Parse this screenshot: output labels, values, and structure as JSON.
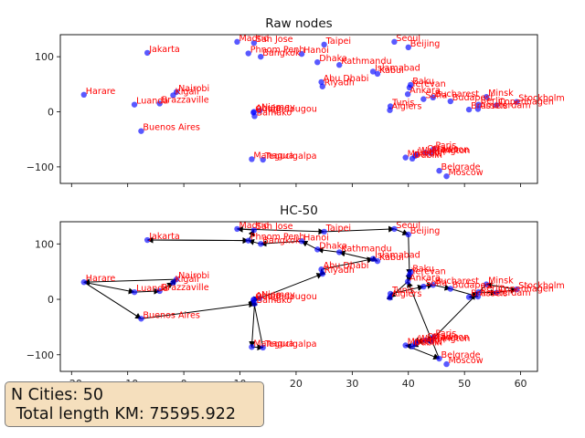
{
  "summary": {
    "cities_line": "N Cities: 50",
    "length_line": " Total length KM: 75595.922"
  },
  "chart_data": [
    {
      "type": "scatter",
      "title": "Raw nodes",
      "xlim": [
        -22,
        63
      ],
      "ylim": [
        -130,
        140
      ],
      "xticks": [
        -20,
        -10,
        0,
        10,
        20,
        30,
        40,
        50,
        60
      ],
      "yticks": [
        -100,
        0,
        100
      ],
      "show_xtick_labels": false,
      "point_color": "#0000ff",
      "label_color": "#ff0000"
    },
    {
      "type": "line",
      "title": "HC-50",
      "xlim": [
        -22,
        63
      ],
      "ylim": [
        -130,
        140
      ],
      "xticks": [
        -20,
        -10,
        0,
        10,
        20,
        30,
        40,
        50,
        60
      ],
      "yticks": [
        -100,
        0,
        100
      ],
      "show_xtick_labels": true,
      "point_color": "#0000ff",
      "label_color": "#ff0000",
      "route_color": "#000000"
    }
  ],
  "cities": [
    {
      "name": "Madrid",
      "x": 9.5,
      "y": 127
    },
    {
      "name": "San Jose",
      "x": 12.5,
      "y": 125
    },
    {
      "name": "Taipei",
      "x": 25,
      "y": 122
    },
    {
      "name": "Seoul",
      "x": 37.5,
      "y": 127
    },
    {
      "name": "Beijing",
      "x": 40,
      "y": 117
    },
    {
      "name": "Jakarta",
      "x": -6.5,
      "y": 107
    },
    {
      "name": "Phnom Penh",
      "x": 11.5,
      "y": 106
    },
    {
      "name": "Bangkok",
      "x": 13.7,
      "y": 100
    },
    {
      "name": "Hanoi",
      "x": 21,
      "y": 105
    },
    {
      "name": "Dhaka",
      "x": 23.8,
      "y": 90
    },
    {
      "name": "Kathmandu",
      "x": 27.7,
      "y": 85
    },
    {
      "name": "Islamabad",
      "x": 33.7,
      "y": 73
    },
    {
      "name": "Kabul",
      "x": 34.5,
      "y": 69
    },
    {
      "name": "Abu Dhabi",
      "x": 24.5,
      "y": 54
    },
    {
      "name": "Riyadh",
      "x": 24.7,
      "y": 46
    },
    {
      "name": "Baku",
      "x": 40.4,
      "y": 49
    },
    {
      "name": "Yerevan",
      "x": 40.2,
      "y": 44
    },
    {
      "name": "Harare",
      "x": -17.8,
      "y": 31
    },
    {
      "name": "Nairobi",
      "x": -1.3,
      "y": 36
    },
    {
      "name": "Kigali",
      "x": -1.9,
      "y": 30
    },
    {
      "name": "Luanda",
      "x": -8.8,
      "y": 13
    },
    {
      "name": "Brazzaville",
      "x": -4.3,
      "y": 15
    },
    {
      "name": "Ankara",
      "x": 39.9,
      "y": 32
    },
    {
      "name": "Sofia",
      "x": 42.7,
      "y": 23
    },
    {
      "name": "Bucharest",
      "x": 44.4,
      "y": 26
    },
    {
      "name": "Budapest",
      "x": 47.5,
      "y": 19
    },
    {
      "name": "Minsk",
      "x": 53.9,
      "y": 27
    },
    {
      "name": "Stockholm",
      "x": 59.3,
      "y": 18
    },
    {
      "name": "Copenhagen",
      "x": 55.7,
      "y": 12
    },
    {
      "name": "Berlin",
      "x": 52.5,
      "y": 13
    },
    {
      "name": "Amsterdam",
      "x": 52.4,
      "y": 5
    },
    {
      "name": "Brussels",
      "x": 50.8,
      "y": 4
    },
    {
      "name": "Tunis",
      "x": 36.8,
      "y": 10
    },
    {
      "name": "Algiers",
      "x": 36.7,
      "y": 3
    },
    {
      "name": "Abuja",
      "x": 12.5,
      "y": 0
    },
    {
      "name": "Niamey",
      "x": 13.5,
      "y": 2
    },
    {
      "name": "Ouagadougou",
      "x": 12.4,
      "y": -1.5
    },
    {
      "name": "Bamako",
      "x": 12.6,
      "y": -8
    },
    {
      "name": "Buenos Aires",
      "x": -7.6,
      "y": -35
    },
    {
      "name": "Managua",
      "x": 12.1,
      "y": -86
    },
    {
      "name": "Tegucigalpa",
      "x": 14.1,
      "y": -87
    },
    {
      "name": "Paris",
      "x": 44.5,
      "y": -68
    },
    {
      "name": "Washington",
      "x": 41.5,
      "y": -77
    },
    {
      "name": "Ottawa",
      "x": 43,
      "y": -74
    },
    {
      "name": "Madison",
      "x": 44,
      "y": -75
    },
    {
      "name": "Lisbon",
      "x": 41.2,
      "y": -80
    },
    {
      "name": "Dublin",
      "x": 40.7,
      "y": -85
    },
    {
      "name": "Moscow",
      "x": 39.5,
      "y": -83
    },
    {
      "name": "Belgrade",
      "x": 45.5,
      "y": -107
    },
    {
      "name": "Moscow",
      "x": 46.8,
      "y": -117
    }
  ],
  "route": [
    "Harare",
    "Luanda",
    "Brazzaville",
    "Kigali",
    "Nairobi",
    "Harare",
    "Buenos Aires",
    "Bamako",
    "Managua",
    "Tegucigalpa",
    "Ouagadougou",
    "Abuja",
    "Niamey",
    "Riyadh",
    "Abu Dhabi",
    "Islamabad",
    "Kabul",
    "Kathmandu",
    "Dhaka",
    "Hanoi",
    "Bangkok",
    "Phnom Penh",
    "Jakarta",
    "Phnom Penh",
    "San Jose",
    "Madrid",
    "Taipei",
    "Seoul",
    "Beijing",
    "Yerevan",
    "Baku",
    "Ankara",
    "Algiers",
    "Tunis",
    "Sofia",
    "Bucharest",
    "Budapest",
    "Amsterdam",
    "Brussels",
    "Berlin",
    "Copenhagen",
    "Stockholm",
    "Minsk",
    "Madison",
    "Ottawa",
    "Washington",
    "Lisbon",
    "Paris",
    "Dublin",
    "Moscow",
    "Belgrade",
    "Ankara"
  ]
}
